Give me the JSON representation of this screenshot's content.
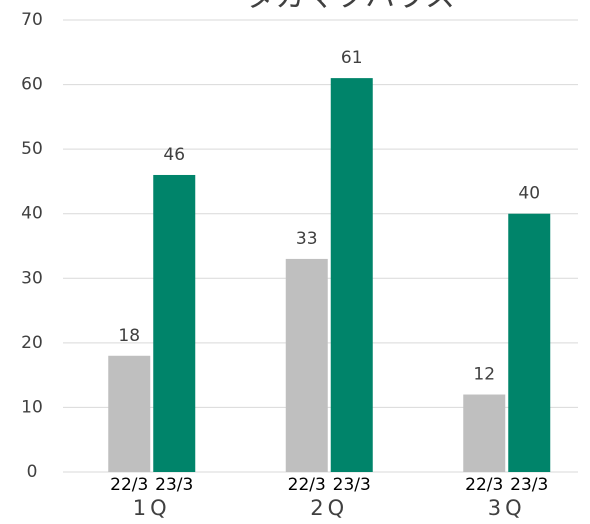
{
  "chart_data": {
    "type": "bar",
    "title": "タカマツハウス",
    "categories": [
      "1Q",
      "2Q",
      "3Q"
    ],
    "series": [
      {
        "name": "22/3",
        "color": "#bfbfbf",
        "values": [
          18,
          33,
          12
        ]
      },
      {
        "name": "23/3",
        "color": "#00846a",
        "values": [
          46,
          61,
          40
        ]
      }
    ],
    "ylim": [
      0,
      70
    ],
    "yticks": [
      0,
      10,
      20,
      30,
      40,
      50,
      60,
      70
    ],
    "grid": true
  }
}
